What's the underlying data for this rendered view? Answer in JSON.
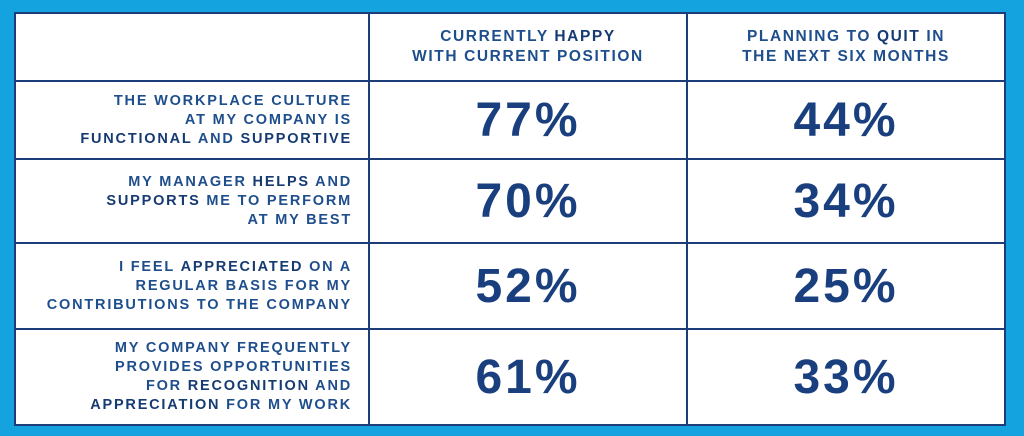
{
  "colors": {
    "background": "#14a3de",
    "table_background": "#ffffff",
    "text_primary": "#1f4e8c",
    "border": "#1c3d7a"
  },
  "table": {
    "headers": [
      {
        "lines": [
          [
            "CURRENTLY ",
            "HAPPY"
          ],
          [
            "WITH CURRENT POSITION"
          ]
        ]
      },
      {
        "lines": [
          [
            "PLANNING TO ",
            "QUIT",
            " IN"
          ],
          [
            "THE NEXT SIX MONTHS"
          ]
        ]
      }
    ],
    "rows": [
      {
        "label_lines": [
          {
            "parts": [
              "THE WORKPLACE CULTURE"
            ]
          },
          {
            "parts": [
              "AT MY COMPANY IS"
            ]
          },
          {
            "parts": [
              "FUNCTIONAL",
              " AND ",
              "SUPPORTIVE"
            ]
          }
        ],
        "happy": "77%",
        "quit": "44%"
      },
      {
        "label_lines": [
          {
            "parts": [
              "MY MANAGER ",
              "HELPS",
              " AND"
            ]
          },
          {
            "parts": [
              "SUPPORTS",
              " ME TO PERFORM"
            ]
          },
          {
            "parts": [
              "AT MY BEST"
            ]
          }
        ],
        "happy": "70%",
        "quit": "34%"
      },
      {
        "label_lines": [
          {
            "parts": [
              "I FEEL ",
              "APPRECIATED",
              " ON A"
            ]
          },
          {
            "parts": [
              "REGULAR BASIS FOR MY"
            ]
          },
          {
            "parts": [
              "CONTRIBUTIONS TO THE COMPANY"
            ]
          }
        ],
        "happy": "52%",
        "quit": "25%"
      },
      {
        "label_lines": [
          {
            "parts": [
              "MY COMPANY FREQUENTLY"
            ]
          },
          {
            "parts": [
              "PROVIDES OPPORTUNITIES"
            ]
          },
          {
            "parts": [
              "FOR ",
              "RECOGNITION",
              " AND"
            ]
          },
          {
            "parts": [
              "APPRECIATION",
              " FOR MY WORK"
            ]
          }
        ],
        "happy": "61%",
        "quit": "33%"
      }
    ]
  }
}
